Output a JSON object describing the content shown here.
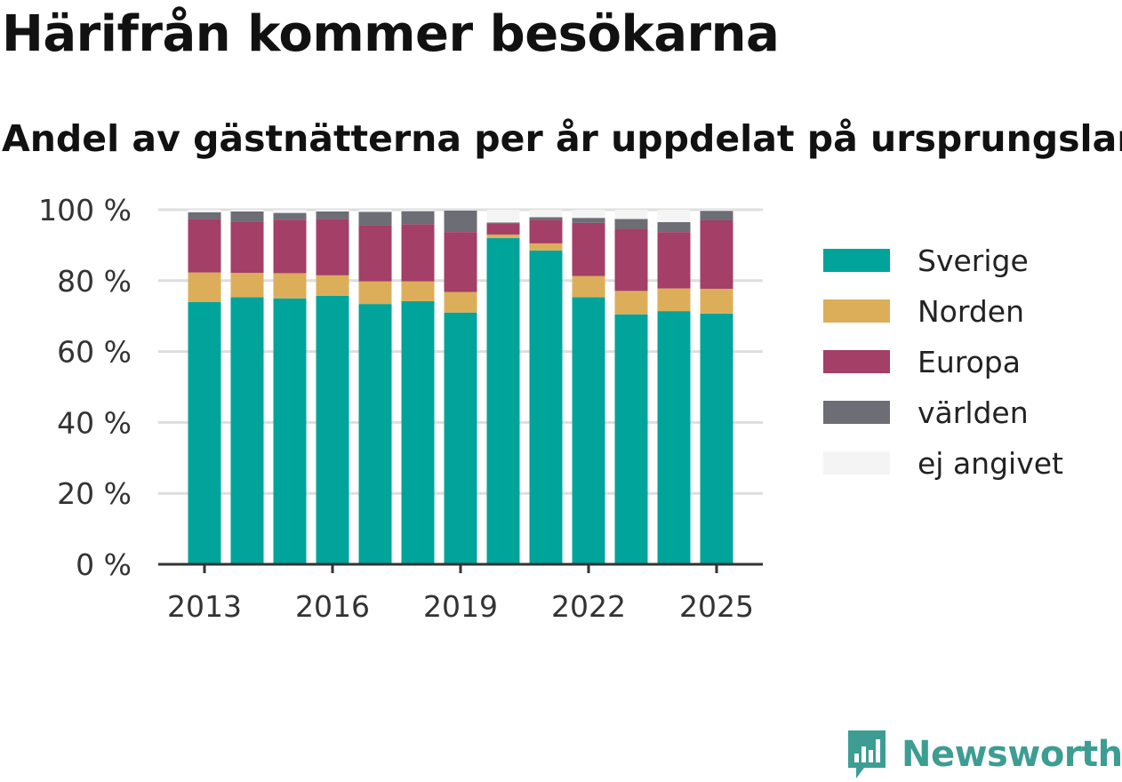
{
  "chart_data": {
    "type": "bar",
    "stacked": true,
    "title": "Härifrån kommer besökarna",
    "subtitle": "Andel av gästnätterna per år uppdelat på ursprungsland",
    "categories": [
      "2013",
      "2014",
      "2015",
      "2016",
      "2017",
      "2018",
      "2019",
      "2020",
      "2021",
      "2022",
      "2023",
      "2024",
      "2025"
    ],
    "x_tick_labels": [
      "2013",
      "2016",
      "2019",
      "2022",
      "2025"
    ],
    "y_tick_labels": [
      "0 %",
      "20 %",
      "40 %",
      "60 %",
      "80 %",
      "100 %"
    ],
    "ylim": [
      0,
      100
    ],
    "grid": true,
    "legend_position": "right",
    "series": [
      {
        "name": "Sverige",
        "color": "#00a49a",
        "values": [
          74,
          75.3,
          75,
          75.7,
          73.4,
          74.2,
          71,
          92,
          88.5,
          75.3,
          70.5,
          71.4,
          70.7
        ]
      },
      {
        "name": "Norden",
        "color": "#dcae5a",
        "values": [
          8.3,
          6.9,
          7.1,
          5.8,
          6.4,
          5.6,
          5.8,
          1,
          2,
          6,
          6.6,
          6.4,
          7
        ]
      },
      {
        "name": "Europa",
        "color": "#a43f67",
        "values": [
          15.1,
          14.3,
          15.1,
          15.9,
          15.7,
          16.1,
          16.9,
          3.1,
          6.6,
          15,
          17.5,
          15.9,
          19.3
        ]
      },
      {
        "name": "världen",
        "color": "#6d6d75",
        "values": [
          1.9,
          3,
          1.9,
          2.1,
          3.9,
          3.7,
          6.1,
          0.3,
          0.8,
          1.4,
          2.8,
          2.8,
          2.7
        ]
      },
      {
        "name": "ej angivet",
        "color": "#f4f4f5",
        "values": [
          0.7,
          0.5,
          0.9,
          0.5,
          0.6,
          0.4,
          0.2,
          3.6,
          2.1,
          2.3,
          2.6,
          3.5,
          0.3
        ]
      }
    ]
  },
  "brand": {
    "name": "Newsworthy",
    "icon": "bar-chart-speech-bubble-icon",
    "color": "#3d9d93"
  }
}
